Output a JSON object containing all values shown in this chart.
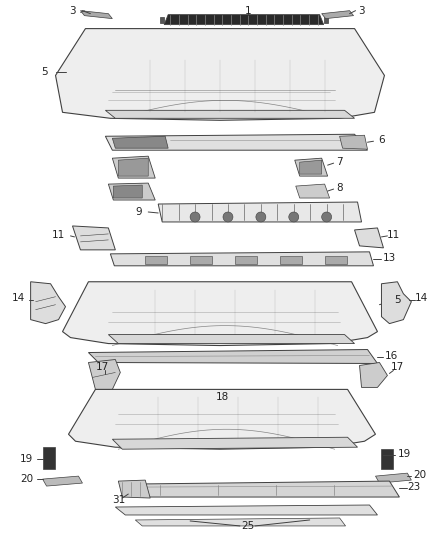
{
  "bg_color": "#ffffff",
  "line_color": "#404040",
  "text_color": "#222222",
  "font_size": 7.5,
  "fig_w": 4.38,
  "fig_h": 5.33,
  "dpi": 100
}
